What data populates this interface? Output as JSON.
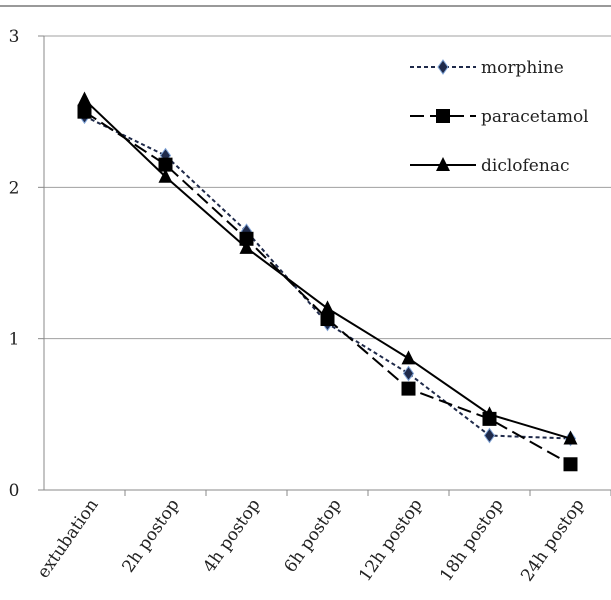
{
  "chart_data": {
    "type": "line",
    "categories": [
      "extubation",
      "2h postop",
      "4h postop",
      "6h postop",
      "12h postop",
      "18h postop",
      "24h postop"
    ],
    "series": [
      {
        "name": "morphine",
        "color": "#1f2a4a",
        "dash": "4 3",
        "marker": "diamond",
        "values": [
          2.47,
          2.21,
          1.71,
          1.1,
          0.77,
          0.36,
          0.34
        ]
      },
      {
        "name": "paracetamol",
        "color": "#000000",
        "dash": "14 6",
        "marker": "square",
        "values": [
          2.5,
          2.15,
          1.66,
          1.13,
          0.67,
          0.47,
          0.17
        ]
      },
      {
        "name": "diclofenac",
        "color": "#000000",
        "dash": "none",
        "marker": "triangle",
        "values": [
          2.58,
          2.07,
          1.6,
          1.2,
          0.87,
          0.5,
          0.34
        ]
      }
    ],
    "ylim": [
      0,
      3
    ],
    "yticks": [
      0,
      1,
      2,
      3
    ],
    "grid": true,
    "legend": "top-right"
  }
}
